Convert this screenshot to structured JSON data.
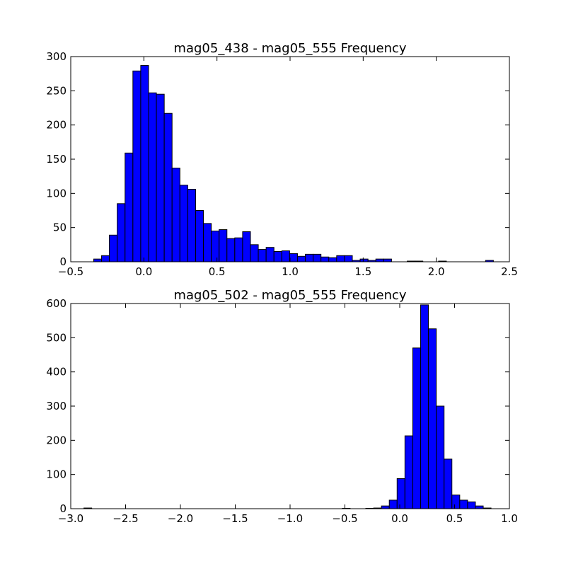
{
  "chart_data": [
    {
      "type": "bar",
      "title": "mag05_438 - mag05_555 Frequency",
      "xlabel": "",
      "ylabel": "",
      "xlim": [
        -0.5,
        2.5
      ],
      "ylim": [
        0,
        300
      ],
      "xticks": [
        "−0.5",
        "0.0",
        "0.5",
        "1.0",
        "1.5",
        "2.0",
        "2.5"
      ],
      "xtick_values": [
        -0.5,
        0.0,
        0.5,
        1.0,
        1.5,
        2.0,
        2.5
      ],
      "yticks": [
        "0",
        "50",
        "100",
        "150",
        "200",
        "250",
        "300"
      ],
      "ytick_values": [
        0,
        50,
        100,
        150,
        200,
        250,
        300
      ],
      "bar_color": "#0000ff",
      "grid": false,
      "bin_start": -0.343,
      "bin_width": 0.0536,
      "values": [
        4,
        9,
        39,
        85,
        159,
        279,
        287,
        247,
        245,
        217,
        137,
        112,
        106,
        75,
        56,
        45,
        47,
        34,
        35,
        44,
        25,
        18,
        21,
        15,
        16,
        12,
        8,
        11,
        11,
        7,
        6,
        9,
        9,
        2,
        4,
        2,
        4,
        4,
        0,
        0,
        1,
        1,
        0,
        0,
        1,
        0,
        0,
        0,
        0,
        0,
        2
      ]
    },
    {
      "type": "bar",
      "title": "mag05_502 - mag05_555 Frequency",
      "xlabel": "",
      "ylabel": "",
      "xlim": [
        -3.0,
        1.0
      ],
      "ylim": [
        0,
        600
      ],
      "xticks": [
        "−3.0",
        "−2.5",
        "−2.0",
        "−1.5",
        "−1.0",
        "−0.5",
        "0.0",
        "0.5",
        "1.0"
      ],
      "xtick_values": [
        -3.0,
        -2.5,
        -2.0,
        -1.5,
        -1.0,
        -0.5,
        0.0,
        0.5,
        1.0
      ],
      "yticks": [
        "0",
        "100",
        "200",
        "300",
        "400",
        "500",
        "600"
      ],
      "ytick_values": [
        0,
        100,
        200,
        300,
        400,
        500,
        600
      ],
      "bar_color": "#0000ff",
      "grid": false,
      "bin_start": -2.88,
      "bin_width": 0.0714,
      "values": [
        2,
        0,
        0,
        0,
        0,
        0,
        0,
        0,
        0,
        0,
        0,
        0,
        0,
        0,
        0,
        0,
        0,
        0,
        0,
        0,
        0,
        0,
        0,
        0,
        0,
        0,
        0,
        0,
        0,
        0,
        0,
        0,
        0,
        1,
        0,
        0,
        1,
        2,
        8,
        25,
        88,
        213,
        470,
        596,
        526,
        300,
        145,
        40,
        25,
        20,
        8,
        2
      ]
    }
  ]
}
